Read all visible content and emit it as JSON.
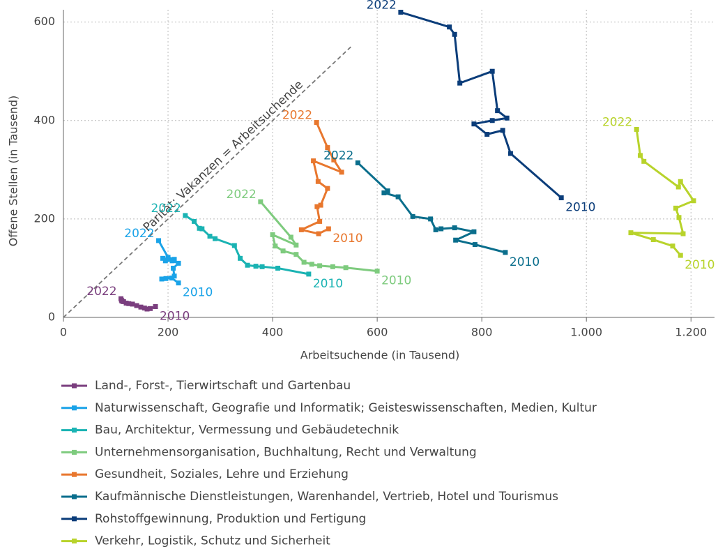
{
  "chart_data": {
    "type": "connected-scatter",
    "xlabel": "Arbeitsuchende (in Tausend)",
    "ylabel": "Offene Stellen (in Tausend)",
    "xlim": [
      0,
      1245
    ],
    "ylim": [
      0,
      625
    ],
    "xticks": [
      0,
      200,
      400,
      600,
      800,
      {
        "value": 1000,
        "label": "1.000"
      },
      {
        "value": 1200,
        "label": "1.200"
      }
    ],
    "yticks": [
      0,
      200,
      400,
      600
    ],
    "grid": true,
    "parity": {
      "label": "Parität: Vakanzen = Arbeitsuchende",
      "x": [
        0,
        550
      ],
      "y": [
        0,
        550
      ]
    },
    "series": [
      {
        "name": "Land-, Forst-, Tierwirtschaft und Gartenbau",
        "color": "#7a3e7e",
        "start_label": "2010",
        "end_label": "2022",
        "x": [
          176,
          166,
          160,
          155,
          148,
          140,
          132,
          125,
          120,
          115,
          112,
          111,
          110
        ],
        "values": [
          22,
          18,
          17,
          19,
          21,
          24,
          27,
          28,
          29,
          32,
          33,
          35,
          38
        ]
      },
      {
        "name": "Naturwissenschaft, Geografie und Informatik; Geisteswissenschaften, Medien, Kultur",
        "color": "#1aa3e8",
        "start_label": "2010",
        "end_label": "2022",
        "x": [
          220,
          207,
          196,
          188,
          212,
          210,
          220,
          208,
          195,
          190,
          212,
          200,
          182
        ],
        "values": [
          70,
          80,
          79,
          78,
          84,
          100,
          110,
          115,
          115,
          120,
          118,
          122,
          156
        ]
      },
      {
        "name": "Bau, Architektur, Vermessung und Gebäudetechnik",
        "color": "#1ab3b3",
        "start_label": "2010",
        "end_label": "2022",
        "x": [
          469,
          410,
          380,
          368,
          352,
          338,
          327,
          290,
          280,
          265,
          260,
          250,
          233
        ],
        "values": [
          88,
          100,
          103,
          104,
          106,
          120,
          146,
          160,
          165,
          180,
          181,
          195,
          207
        ]
      },
      {
        "name": "Unternehmensorganisation, Buchhaltung, Recht und Verwaltung",
        "color": "#7ecb7e",
        "start_label": "2010",
        "end_label": "2022",
        "x": [
          600,
          540,
          515,
          490,
          475,
          460,
          445,
          420,
          405,
          400,
          445,
          435,
          377
        ],
        "values": [
          94,
          101,
          103,
          105,
          108,
          112,
          128,
          135,
          145,
          168,
          147,
          163,
          235
        ]
      },
      {
        "name": "Gesundheit, Soziales, Lehre und Erziehung",
        "color": "#e8772e",
        "start_label": "2010",
        "end_label": "2022",
        "x": [
          507,
          488,
          455,
          490,
          485,
          492,
          505,
          487,
          478,
          532,
          517,
          505,
          484
        ],
        "values": [
          180,
          170,
          178,
          195,
          225,
          228,
          262,
          276,
          318,
          295,
          320,
          345,
          396
        ]
      },
      {
        "name": "Kaufmännische Dienstleistungen, Warenhandel, Vertrieb, Hotel und Tourismus",
        "color": "#0a6e8c",
        "start_label": "2010",
        "end_label": "2022",
        "x": [
          845,
          787,
          750,
          785,
          748,
          722,
          712,
          702,
          668,
          640,
          613,
          620,
          563
        ],
        "values": [
          132,
          148,
          157,
          174,
          182,
          180,
          178,
          200,
          205,
          245,
          253,
          257,
          314
        ]
      },
      {
        "name": "Rohstoffgewinnung, Produktion und Fertigung",
        "color": "#0b3d7a",
        "start_label": "2010",
        "end_label": "2022",
        "x": [
          952,
          855,
          840,
          810,
          785,
          820,
          848,
          830,
          820,
          758,
          748,
          738,
          645
        ],
        "values": [
          243,
          333,
          380,
          372,
          393,
          400,
          405,
          420,
          500,
          476,
          575,
          590,
          620
        ]
      },
      {
        "name": "Verkehr, Logistik, Schutz und Sicherheit",
        "color": "#b8d32b",
        "start_label": "2010",
        "end_label": "2022",
        "x": [
          1180,
          1165,
          1128,
          1085,
          1185,
          1177,
          1171,
          1205,
          1180,
          1176,
          1110,
          1103,
          1096
        ],
        "values": [
          126,
          145,
          158,
          172,
          170,
          203,
          222,
          237,
          276,
          265,
          317,
          329,
          382
        ]
      }
    ]
  }
}
